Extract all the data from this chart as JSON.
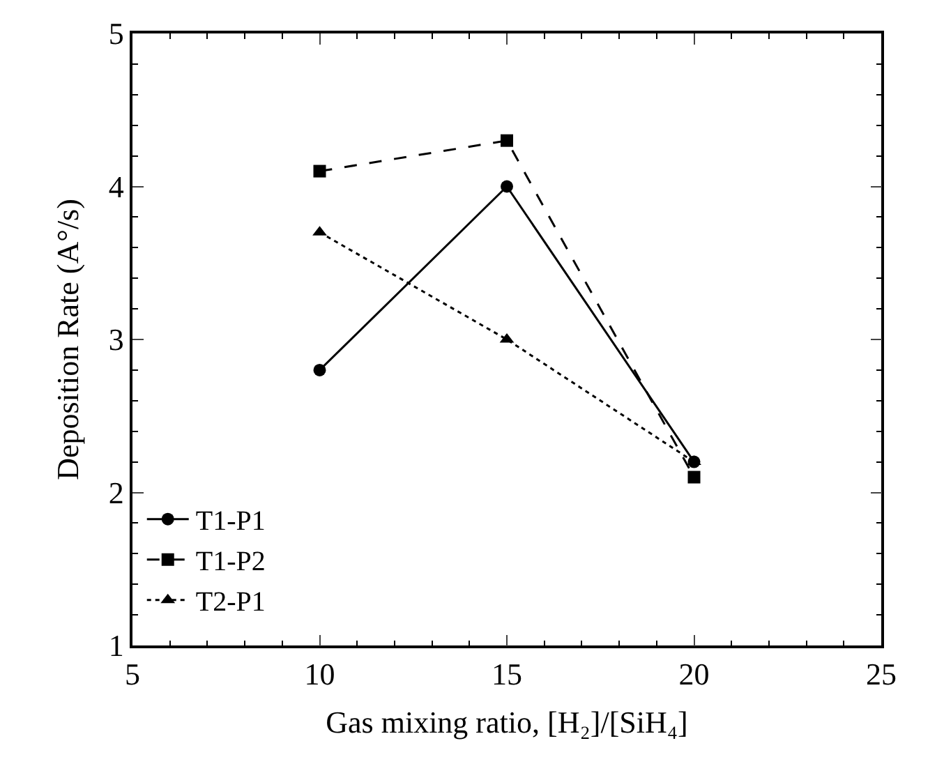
{
  "chart_data": {
    "type": "line",
    "xlabel": "Gas mixing ratio, [H₂]/[SiH₄]",
    "ylabel": "Deposition Rate (A°/s)",
    "x": [
      10,
      15,
      20
    ],
    "series": [
      {
        "name": "T1-P1",
        "color": "#000000",
        "values": [
          2.8,
          4.0,
          2.2
        ],
        "marker": "circle",
        "line_style": "solid"
      },
      {
        "name": "T1-P2",
        "color": "#000000",
        "values": [
          4.1,
          4.3,
          2.1
        ],
        "marker": "square",
        "line_style": "dashed"
      },
      {
        "name": "T2-P1",
        "color": "#000000",
        "values": [
          3.7,
          3.0,
          2.2
        ],
        "marker": "triangle",
        "line_style": "dotted"
      }
    ],
    "xlim": [
      5,
      25
    ],
    "xticks": [
      5,
      10,
      15,
      20,
      25
    ],
    "ylim": [
      1,
      5
    ],
    "yticks": [
      1,
      2,
      3,
      4,
      5
    ],
    "legend": "bottom left"
  }
}
